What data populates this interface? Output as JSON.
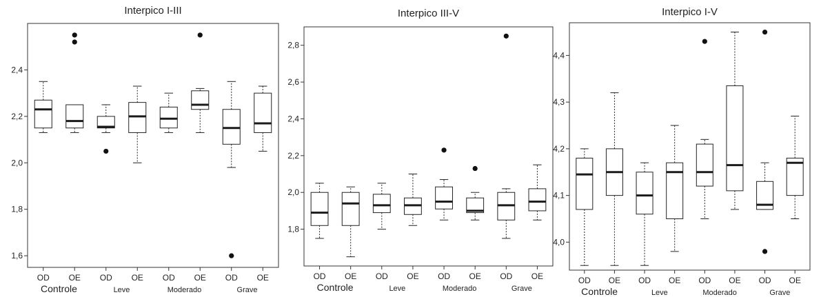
{
  "colors": {
    "box_fill": "#ffffff",
    "stroke": "#222222",
    "median": "#1a1a1a",
    "outlier": "#111111",
    "frame": "#333333"
  },
  "chart_data": [
    {
      "type": "boxplot",
      "title": "Interpico I-III",
      "ylim": [
        1.55,
        2.6
      ],
      "yticks": [
        1.6,
        1.8,
        2.0,
        2.2,
        2.4
      ],
      "ytick_labels": [
        "1,6",
        "1,8",
        "2,0",
        "2,2",
        "2,4"
      ],
      "categories": [
        "OD",
        "OE",
        "OD",
        "OE",
        "OD",
        "OE",
        "OD",
        "OE"
      ],
      "groups": [
        "Controle",
        "Leve",
        "Moderado",
        "Grave"
      ],
      "boxes": [
        {
          "min": 2.13,
          "q1": 2.15,
          "median": 2.23,
          "q3": 2.27,
          "max": 2.35,
          "outliers": []
        },
        {
          "min": 2.13,
          "q1": 2.15,
          "median": 2.18,
          "q3": 2.25,
          "max": 2.25,
          "outliers": [
            2.55,
            2.52
          ]
        },
        {
          "min": 2.13,
          "q1": 2.15,
          "median": 2.155,
          "q3": 2.2,
          "max": 2.25,
          "outliers": [
            2.05
          ]
        },
        {
          "min": 2.0,
          "q1": 2.13,
          "median": 2.2,
          "q3": 2.26,
          "max": 2.33,
          "outliers": []
        },
        {
          "min": 2.13,
          "q1": 2.15,
          "median": 2.19,
          "q3": 2.24,
          "max": 2.3,
          "outliers": []
        },
        {
          "min": 2.13,
          "q1": 2.23,
          "median": 2.25,
          "q3": 2.31,
          "max": 2.32,
          "outliers": [
            2.55
          ]
        },
        {
          "min": 1.98,
          "q1": 2.08,
          "median": 2.15,
          "q3": 2.23,
          "max": 2.35,
          "outliers": [
            1.6
          ]
        },
        {
          "min": 2.05,
          "q1": 2.13,
          "median": 2.17,
          "q3": 2.3,
          "max": 2.33,
          "outliers": []
        }
      ]
    },
    {
      "type": "boxplot",
      "title": "Interpico III-V",
      "ylim": [
        1.6,
        2.9
      ],
      "yticks": [
        1.8,
        2.0,
        2.2,
        2.4,
        2.6,
        2.8
      ],
      "ytick_labels": [
        "1,8",
        "2,0",
        "2,2",
        "2,4",
        "2,6",
        "2,8"
      ],
      "categories": [
        "OD",
        "OE",
        "OD",
        "OE",
        "OD",
        "OE",
        "OD",
        "OE"
      ],
      "groups": [
        "Controle",
        "Leve",
        "Moderado",
        "Grave"
      ],
      "boxes": [
        {
          "min": 1.75,
          "q1": 1.82,
          "median": 1.89,
          "q3": 2.0,
          "max": 2.05,
          "outliers": []
        },
        {
          "min": 1.65,
          "q1": 1.82,
          "median": 1.94,
          "q3": 2.0,
          "max": 2.03,
          "outliers": []
        },
        {
          "min": 1.8,
          "q1": 1.89,
          "median": 1.93,
          "q3": 1.99,
          "max": 2.05,
          "outliers": []
        },
        {
          "min": 1.82,
          "q1": 1.88,
          "median": 1.93,
          "q3": 1.97,
          "max": 2.1,
          "outliers": []
        },
        {
          "min": 1.85,
          "q1": 1.91,
          "median": 1.95,
          "q3": 2.03,
          "max": 2.07,
          "outliers": [
            2.23
          ]
        },
        {
          "min": 1.85,
          "q1": 1.89,
          "median": 1.9,
          "q3": 1.97,
          "max": 2.0,
          "outliers": [
            2.13
          ]
        },
        {
          "min": 1.75,
          "q1": 1.85,
          "median": 1.93,
          "q3": 2.0,
          "max": 2.02,
          "outliers": [
            2.85
          ]
        },
        {
          "min": 1.85,
          "q1": 1.9,
          "median": 1.95,
          "q3": 2.02,
          "max": 2.15,
          "outliers": []
        }
      ]
    },
    {
      "type": "boxplot",
      "title": "Interpico I-V",
      "ylim": [
        3.94,
        4.47
      ],
      "yticks": [
        4.0,
        4.1,
        4.2,
        4.3,
        4.4
      ],
      "ytick_labels": [
        "4,0",
        "4,1",
        "4,2",
        "4,3",
        "4,4"
      ],
      "categories": [
        "OD",
        "OE",
        "OD",
        "OE",
        "OD",
        "OE",
        "OD",
        "OE"
      ],
      "groups": [
        "Controle",
        "Leve",
        "Moderado",
        "Grave"
      ],
      "boxes": [
        {
          "min": 3.95,
          "q1": 4.07,
          "median": 4.145,
          "q3": 4.18,
          "max": 4.2,
          "outliers": []
        },
        {
          "min": 3.95,
          "q1": 4.1,
          "median": 4.15,
          "q3": 4.2,
          "max": 4.32,
          "outliers": []
        },
        {
          "min": 3.95,
          "q1": 4.06,
          "median": 4.1,
          "q3": 4.15,
          "max": 4.17,
          "outliers": []
        },
        {
          "min": 3.98,
          "q1": 4.05,
          "median": 4.15,
          "q3": 4.17,
          "max": 4.25,
          "outliers": []
        },
        {
          "min": 4.05,
          "q1": 4.12,
          "median": 4.15,
          "q3": 4.21,
          "max": 4.22,
          "outliers": [
            4.43
          ]
        },
        {
          "min": 4.07,
          "q1": 4.11,
          "median": 4.165,
          "q3": 4.335,
          "max": 4.45,
          "outliers": []
        },
        {
          "min": 4.07,
          "q1": 4.07,
          "median": 4.08,
          "q3": 4.13,
          "max": 4.17,
          "outliers": [
            4.45,
            3.98
          ]
        },
        {
          "min": 4.05,
          "q1": 4.1,
          "median": 4.17,
          "q3": 4.18,
          "max": 4.27,
          "outliers": []
        }
      ]
    }
  ]
}
